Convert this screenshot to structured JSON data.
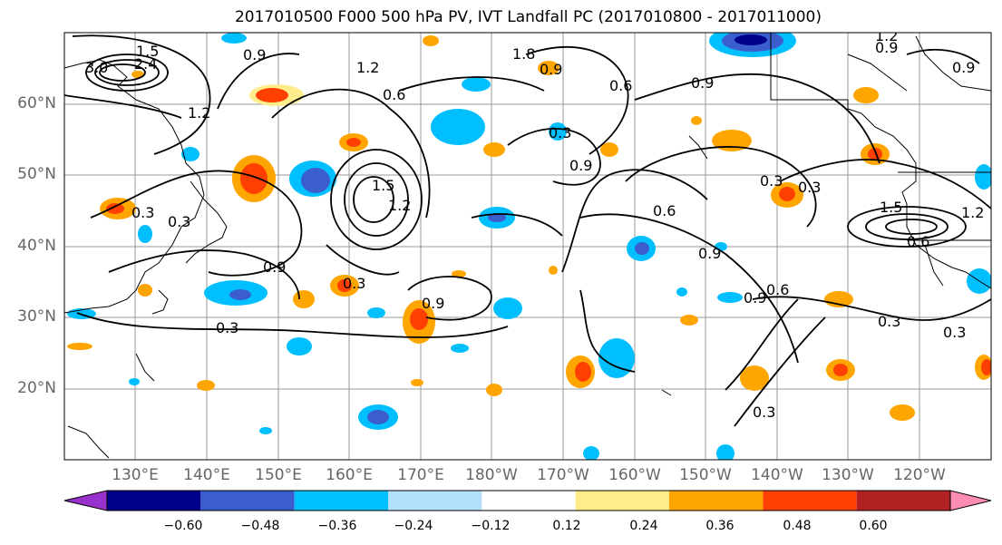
{
  "title": "2017010500 F000 500 hPa PV, IVT Landfall PC (2017010800 - 2017011000)",
  "map": {
    "lat_labels": [
      "60°N",
      "50°N",
      "40°N",
      "30°N",
      "20°N"
    ],
    "lon_labels": [
      "130°E",
      "140°E",
      "150°E",
      "160°E",
      "170°E",
      "180°W",
      "170°W",
      "160°W",
      "150°W",
      "140°W",
      "130°W",
      "120°W"
    ],
    "contour_labels": [
      "1.5",
      "3.0",
      "2.4",
      "0.9",
      "1.2",
      "1.8",
      "0.9",
      "1.2",
      "0.9",
      "0.6",
      "0.6",
      "0.9",
      "0.3",
      "0.9",
      "1.2",
      "0.3",
      "1.5",
      "1.2",
      "0.9",
      "0.6",
      "0.3",
      "0.9",
      "0.3",
      "0.9",
      "0.6",
      "0.3",
      "0.3",
      "0.9",
      "0.3",
      "1.5",
      "1.2",
      "0.6",
      "0.9",
      "0.3",
      "0.3",
      "0.3"
    ],
    "colors": {
      "contour": "#000000",
      "grid": "#999999",
      "coast": "#000000"
    }
  },
  "colorbar": {
    "colors": [
      "#9932cc",
      "#00008b",
      "#3a5fcd",
      "#00bfff",
      "#b0e0fa",
      "#ffffff",
      "#ffec8b",
      "#ffa500",
      "#ff4000",
      "#b22222",
      "#ff8cb4"
    ],
    "tick_labels": [
      "−0.60",
      "−0.48",
      "−0.36",
      "−0.24",
      "−0.12",
      "0.12",
      "0.24",
      "0.36",
      "0.48",
      "0.60"
    ]
  }
}
